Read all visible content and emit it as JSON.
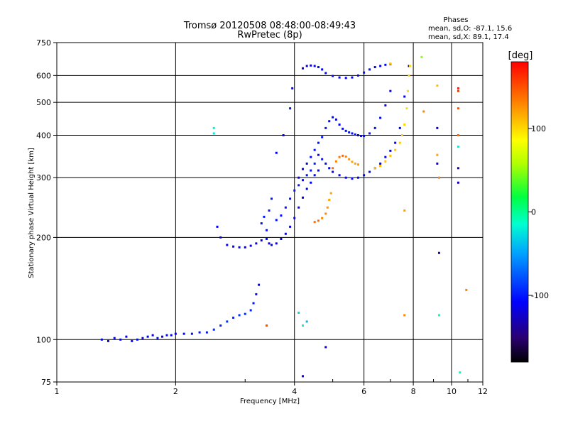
{
  "chart_data": {
    "type": "scatter",
    "title": "Tromsø 20120508 08:48:00-08:49:43",
    "subtitle": "RwPretec (8p)",
    "xlabel": "Frequency [MHz]",
    "ylabel": "Stationary phase Virtual Height [km]",
    "x_scale": "log",
    "y_scale": "log",
    "xlim": [
      1,
      12
    ],
    "ylim": [
      75,
      750
    ],
    "x_ticks": [
      1,
      2,
      4,
      6,
      8,
      10,
      12
    ],
    "y_ticks": [
      75,
      100,
      200,
      300,
      400,
      500,
      600,
      750
    ],
    "grid": true,
    "legend": {
      "heading": "Phases",
      "line1": "mean, sd,O: -87.1, 15.6",
      "line2": "mean, sd,X:  89.1, 17.4"
    },
    "colorbar": {
      "label": "[deg]",
      "range": [
        -180,
        180
      ],
      "ticks": [
        100,
        0,
        -100
      ],
      "colormap": "rainbow"
    },
    "series": [
      {
        "points": [
          [
            1.3,
            100,
            -110
          ],
          [
            1.35,
            99,
            -115
          ],
          [
            1.4,
            101,
            -108
          ],
          [
            1.45,
            100,
            -112
          ],
          [
            1.5,
            102,
            -110
          ],
          [
            1.55,
            99,
            -106
          ],
          [
            1.6,
            100,
            -104
          ],
          [
            1.65,
            101,
            -110
          ],
          [
            1.7,
            102,
            -108
          ],
          [
            1.75,
            103,
            -112
          ],
          [
            1.8,
            101,
            -106
          ],
          [
            1.85,
            102,
            -110
          ],
          [
            1.9,
            103,
            -104
          ],
          [
            1.95,
            103,
            -108
          ],
          [
            2.0,
            104,
            -110
          ],
          [
            2.1,
            104,
            -106
          ],
          [
            2.2,
            104,
            -102
          ],
          [
            2.3,
            105,
            -100
          ],
          [
            2.4,
            105,
            -98
          ],
          [
            2.5,
            107,
            -92
          ],
          [
            2.6,
            110,
            -96
          ],
          [
            2.7,
            113,
            -90
          ],
          [
            2.8,
            116,
            -95
          ],
          [
            2.9,
            118,
            -88
          ],
          [
            3.0,
            119,
            -92
          ],
          [
            3.1,
            122,
            -96
          ],
          [
            3.15,
            128,
            -100
          ],
          [
            3.2,
            136,
            -104
          ],
          [
            3.25,
            145,
            -108
          ],
          [
            2.55,
            215,
            -110
          ],
          [
            2.6,
            200,
            -106
          ],
          [
            2.7,
            190,
            -112
          ],
          [
            2.8,
            188,
            -114
          ],
          [
            2.9,
            187,
            -110
          ],
          [
            3.0,
            187,
            -116
          ],
          [
            3.1,
            189,
            -112
          ],
          [
            3.2,
            192,
            -110
          ],
          [
            3.3,
            196,
            -108
          ],
          [
            3.4,
            198,
            -104
          ],
          [
            3.45,
            192,
            -110
          ],
          [
            3.5,
            190,
            -114
          ],
          [
            3.6,
            192,
            -116
          ],
          [
            3.7,
            198,
            -112
          ],
          [
            3.8,
            205,
            -110
          ],
          [
            3.9,
            215,
            -108
          ],
          [
            4.0,
            228,
            -110
          ],
          [
            4.1,
            245,
            -112
          ],
          [
            4.2,
            262,
            -110
          ],
          [
            4.3,
            278,
            -108
          ],
          [
            4.4,
            290,
            -110
          ],
          [
            4.5,
            305,
            -112
          ],
          [
            4.6,
            315,
            -106
          ],
          [
            3.3,
            220,
            -104
          ],
          [
            3.35,
            230,
            -100
          ],
          [
            3.4,
            210,
            -102
          ],
          [
            3.45,
            240,
            -98
          ],
          [
            3.5,
            260,
            -100
          ],
          [
            3.6,
            225,
            -104
          ],
          [
            3.7,
            232,
            -102
          ],
          [
            3.8,
            245,
            -100
          ],
          [
            3.9,
            260,
            -104
          ],
          [
            4.0,
            275,
            -98
          ],
          [
            4.1,
            285,
            -100
          ],
          [
            4.2,
            295,
            -104
          ],
          [
            4.3,
            305,
            -102
          ],
          [
            4.4,
            315,
            -100
          ],
          [
            4.5,
            330,
            -98
          ],
          [
            4.1,
            300,
            -110
          ],
          [
            4.2,
            318,
            -108
          ],
          [
            4.3,
            330,
            -106
          ],
          [
            4.4,
            345,
            -104
          ],
          [
            4.5,
            362,
            -100
          ],
          [
            4.6,
            380,
            -102
          ],
          [
            4.7,
            395,
            -104
          ],
          [
            4.8,
            420,
            -100
          ],
          [
            4.9,
            440,
            -104
          ],
          [
            5.0,
            452,
            -106
          ],
          [
            5.1,
            445,
            -110
          ],
          [
            5.2,
            430,
            -108
          ],
          [
            5.3,
            418,
            -106
          ],
          [
            5.4,
            412,
            -104
          ],
          [
            5.5,
            408,
            -102
          ],
          [
            5.6,
            405,
            -100
          ],
          [
            5.7,
            402,
            -104
          ],
          [
            5.8,
            400,
            -108
          ],
          [
            5.9,
            398,
            -106
          ],
          [
            6.0,
            398,
            -104
          ],
          [
            6.2,
            405,
            -102
          ],
          [
            6.4,
            420,
            -104
          ],
          [
            6.6,
            450,
            -106
          ],
          [
            6.8,
            490,
            -110
          ],
          [
            7.0,
            540,
            -112
          ],
          [
            4.6,
            350,
            -104
          ],
          [
            4.7,
            340,
            -100
          ],
          [
            4.8,
            330,
            -104
          ],
          [
            4.9,
            320,
            -106
          ],
          [
            5.0,
            312,
            -108
          ],
          [
            5.2,
            305,
            -110
          ],
          [
            5.4,
            300,
            -106
          ],
          [
            5.6,
            298,
            -104
          ],
          [
            5.8,
            300,
            -106
          ],
          [
            6.0,
            305,
            -108
          ],
          [
            6.2,
            312,
            -104
          ],
          [
            6.4,
            320,
            -106
          ],
          [
            6.6,
            330,
            -110
          ],
          [
            6.8,
            345,
            -108
          ],
          [
            7.0,
            360,
            -112
          ],
          [
            7.2,
            380,
            -110
          ],
          [
            7.4,
            420,
            -112
          ],
          [
            7.6,
            520,
            -114
          ],
          [
            7.8,
            640,
            -116
          ],
          [
            4.2,
            630,
            -110
          ],
          [
            4.3,
            640,
            -112
          ],
          [
            4.4,
            642,
            -108
          ],
          [
            4.5,
            640,
            -110
          ],
          [
            4.6,
            635,
            -106
          ],
          [
            4.7,
            625,
            -110
          ],
          [
            4.8,
            610,
            -104
          ],
          [
            5.0,
            598,
            -108
          ],
          [
            5.2,
            592,
            -110
          ],
          [
            5.4,
            590,
            -112
          ],
          [
            5.6,
            592,
            -108
          ],
          [
            5.8,
            600,
            -110
          ],
          [
            6.0,
            612,
            -106
          ],
          [
            6.2,
            625,
            -104
          ],
          [
            6.4,
            635,
            -108
          ],
          [
            6.6,
            640,
            -110
          ],
          [
            6.8,
            645,
            -106
          ],
          [
            7.0,
            648,
            -104
          ],
          [
            5.0,
            320,
            140
          ],
          [
            5.1,
            335,
            130
          ],
          [
            5.2,
            345,
            135
          ],
          [
            5.3,
            348,
            140
          ],
          [
            5.4,
            346,
            130
          ],
          [
            5.5,
            340,
            125
          ],
          [
            5.6,
            334,
            120
          ],
          [
            5.7,
            330,
            118
          ],
          [
            5.8,
            328,
            122
          ],
          [
            4.5,
            222,
            140
          ],
          [
            4.6,
            224,
            138
          ],
          [
            4.7,
            228,
            132
          ],
          [
            4.8,
            235,
            128
          ],
          [
            4.85,
            245,
            125
          ],
          [
            4.9,
            258,
            120
          ],
          [
            4.95,
            270,
            118
          ],
          [
            6.4,
            320,
            110
          ],
          [
            6.6,
            325,
            112
          ],
          [
            6.8,
            335,
            108
          ],
          [
            7.0,
            348,
            110
          ],
          [
            7.2,
            362,
            106
          ],
          [
            7.4,
            380,
            104
          ],
          [
            7.5,
            400,
            102
          ],
          [
            7.6,
            430,
            100
          ],
          [
            7.7,
            480,
            98
          ],
          [
            7.75,
            540,
            100
          ],
          [
            7.8,
            600,
            102
          ],
          [
            7.85,
            640,
            100
          ],
          [
            7.0,
            650,
            110
          ],
          [
            3.95,
            550,
            -110
          ],
          [
            3.9,
            480,
            -104
          ],
          [
            3.75,
            400,
            -112
          ],
          [
            3.6,
            355,
            -110
          ],
          [
            4.1,
            120,
            -30
          ],
          [
            4.2,
            110,
            -20
          ],
          [
            4.3,
            113,
            -40
          ],
          [
            4.8,
            95,
            -120
          ],
          [
            4.2,
            78,
            -120
          ],
          [
            2.5,
            420,
            -10
          ],
          [
            2.5,
            405,
            -20
          ],
          [
            3.4,
            110,
            150
          ],
          [
            7.6,
            240,
            120
          ],
          [
            7.6,
            118,
            130
          ],
          [
            8.4,
            680,
            50
          ],
          [
            8.5,
            470,
            130
          ],
          [
            9.2,
            560,
            110
          ],
          [
            9.2,
            420,
            -120
          ],
          [
            9.2,
            350,
            120
          ],
          [
            9.2,
            330,
            -120
          ],
          [
            9.3,
            180,
            -130
          ],
          [
            9.3,
            118,
            -10
          ],
          [
            9.3,
            300,
            130
          ],
          [
            10.4,
            550,
            170
          ],
          [
            10.4,
            540,
            160
          ],
          [
            10.4,
            480,
            150
          ],
          [
            10.4,
            400,
            140
          ],
          [
            10.4,
            370,
            -20
          ],
          [
            10.4,
            320,
            -140
          ],
          [
            10.4,
            290,
            -130
          ],
          [
            10.5,
            80,
            -10
          ],
          [
            10.9,
            140,
            130
          ]
        ]
      }
    ]
  }
}
